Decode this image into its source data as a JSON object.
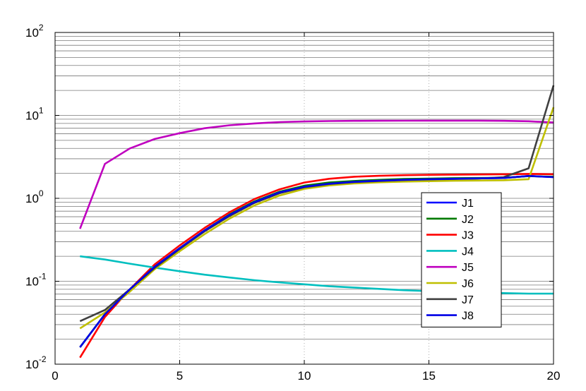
{
  "chart_data": {
    "type": "line",
    "title": "",
    "xlabel": "",
    "ylabel": "",
    "xlim": [
      0,
      20
    ],
    "ylim": [
      0.01,
      100
    ],
    "yscale": "log",
    "grid": true,
    "legend_position": "right",
    "x_ticks": [
      {
        "value": 0,
        "label": "0"
      },
      {
        "value": 5,
        "label": "5"
      },
      {
        "value": 10,
        "label": "10"
      },
      {
        "value": 15,
        "label": "15"
      },
      {
        "value": 20,
        "label": "20"
      }
    ],
    "y_ticks": [
      {
        "value": 0.01,
        "base": "10",
        "exp": "-2"
      },
      {
        "value": 0.1,
        "base": "10",
        "exp": "-1"
      },
      {
        "value": 1,
        "base": "10",
        "exp": "0"
      },
      {
        "value": 10,
        "base": "10",
        "exp": "1"
      },
      {
        "value": 100,
        "base": "10",
        "exp": "2"
      }
    ],
    "x": [
      1,
      2,
      3,
      4,
      5,
      6,
      7,
      8,
      9,
      10,
      11,
      12,
      13,
      14,
      15,
      16,
      17,
      18,
      19,
      20
    ],
    "series": [
      {
        "name": "J1",
        "color": "#0000ff",
        "values": [
          0.016,
          0.04,
          0.08,
          0.15,
          0.25,
          0.41,
          0.63,
          0.9,
          1.18,
          1.38,
          1.5,
          1.58,
          1.63,
          1.67,
          1.7,
          1.72,
          1.74,
          1.76,
          1.86,
          1.8
        ]
      },
      {
        "name": "J2",
        "color": "#007a00",
        "values": [
          0.016,
          0.04,
          0.08,
          0.15,
          0.25,
          0.41,
          0.64,
          0.92,
          1.2,
          1.42,
          1.55,
          1.62,
          1.67,
          1.71,
          1.73,
          1.75,
          1.76,
          1.77,
          1.85,
          1.82
        ]
      },
      {
        "name": "J3",
        "color": "#ff0000",
        "values": [
          0.012,
          0.037,
          0.08,
          0.16,
          0.27,
          0.44,
          0.68,
          0.98,
          1.28,
          1.55,
          1.72,
          1.82,
          1.87,
          1.9,
          1.92,
          1.93,
          1.94,
          1.95,
          1.97,
          1.95
        ]
      },
      {
        "name": "J4",
        "color": "#00bfbf",
        "values": [
          0.2,
          0.183,
          0.163,
          0.146,
          0.132,
          0.12,
          0.111,
          0.103,
          0.097,
          0.092,
          0.087,
          0.084,
          0.081,
          0.078,
          0.076,
          0.074,
          0.073,
          0.072,
          0.071,
          0.071
        ]
      },
      {
        "name": "J5",
        "color": "#bf00bf",
        "values": [
          0.43,
          2.6,
          4.0,
          5.2,
          6.1,
          7.0,
          7.6,
          8.0,
          8.3,
          8.45,
          8.55,
          8.6,
          8.62,
          8.64,
          8.65,
          8.65,
          8.65,
          8.6,
          8.5,
          8.2
        ]
      },
      {
        "name": "J6",
        "color": "#bfbf00",
        "values": [
          0.027,
          0.042,
          0.075,
          0.14,
          0.23,
          0.37,
          0.57,
          0.82,
          1.08,
          1.3,
          1.43,
          1.51,
          1.56,
          1.59,
          1.61,
          1.63,
          1.64,
          1.65,
          1.7,
          12.5
        ]
      },
      {
        "name": "J7",
        "color": "#404040",
        "values": [
          0.033,
          0.045,
          0.08,
          0.145,
          0.245,
          0.4,
          0.61,
          0.88,
          1.15,
          1.36,
          1.49,
          1.57,
          1.62,
          1.66,
          1.69,
          1.71,
          1.73,
          1.8,
          2.3,
          23
        ]
      },
      {
        "name": "J8",
        "color": "#0000e6",
        "values": [
          0.016,
          0.04,
          0.08,
          0.15,
          0.25,
          0.41,
          0.63,
          0.9,
          1.18,
          1.38,
          1.5,
          1.58,
          1.63,
          1.67,
          1.7,
          1.72,
          1.74,
          1.76,
          1.86,
          1.8
        ]
      }
    ]
  }
}
